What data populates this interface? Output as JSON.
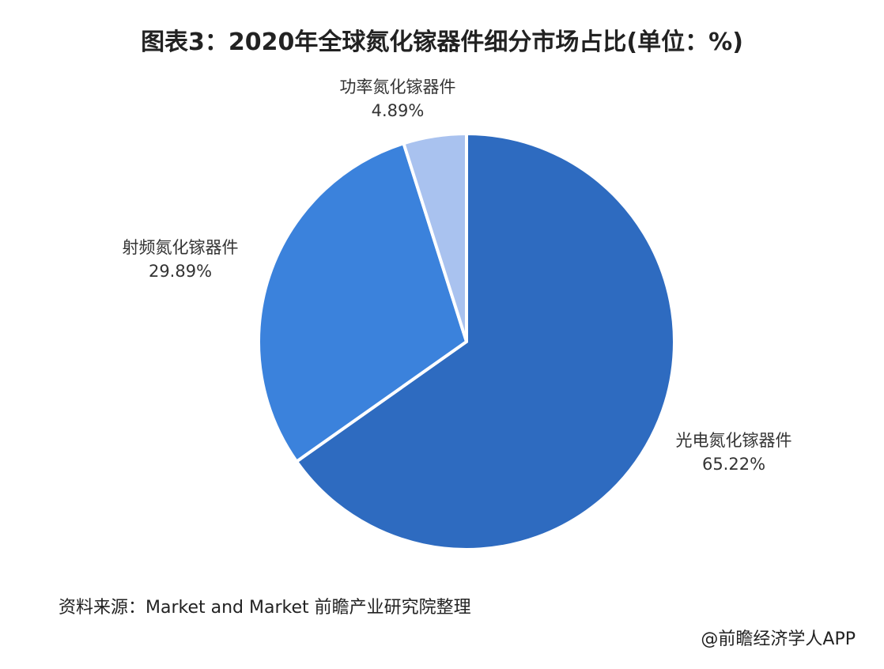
{
  "chart_data": {
    "type": "pie",
    "title": "图表3：2020年全球氮化镓器件细分市场占比(单位：%)",
    "categories": [
      "光电氮化镓器件",
      "射频氮化镓器件",
      "功率氮化镓器件"
    ],
    "values": [
      65.22,
      29.89,
      4.89
    ],
    "value_labels": [
      "65.22%",
      "29.89%",
      "4.89%"
    ],
    "colors": [
      "#2e6bc0",
      "#3b82dc",
      "#a9c2ef"
    ],
    "start_angle_deg": 0,
    "direction": "clockwise",
    "legend": "none"
  },
  "footer": {
    "source": "资料来源：Market and Market 前瞻产业研究院整理",
    "credit": "@前瞻经济学人APP"
  }
}
